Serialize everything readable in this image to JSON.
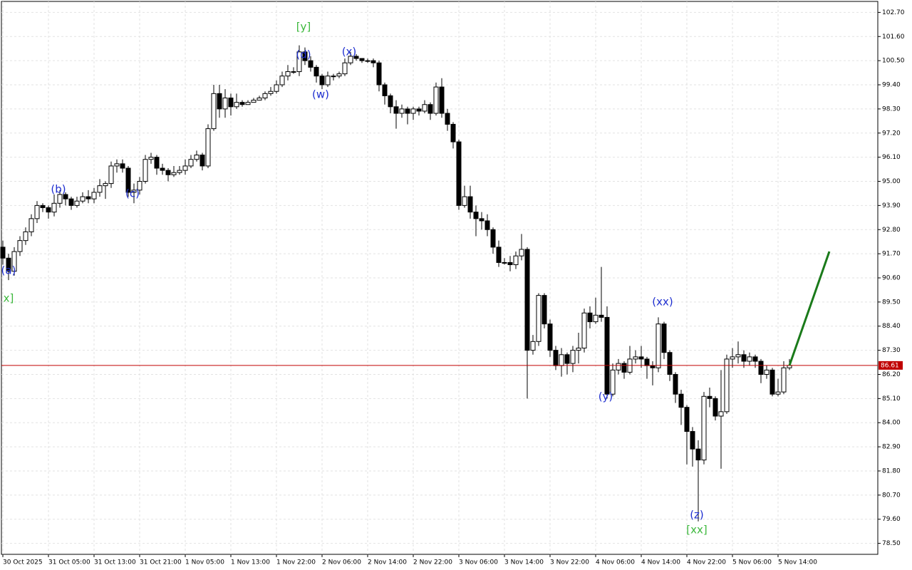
{
  "chart_data": {
    "type": "candlestick",
    "categories": [
      "30 Oct 2025",
      null,
      null,
      null,
      null,
      null,
      null,
      null,
      "31 Oct 05:00",
      null,
      null,
      null,
      null,
      null,
      null,
      null,
      "31 Oct 13:00",
      null,
      null,
      null,
      null,
      null,
      null,
      null,
      "31 Oct 21:00",
      null,
      null,
      null,
      null,
      null,
      null,
      null,
      "1 Nov 05:00",
      null,
      null,
      null,
      null,
      null,
      null,
      null,
      "1 Nov 13:00",
      null,
      null,
      null,
      null,
      null,
      null,
      null,
      "1 Nov 22:00",
      null,
      null,
      null,
      null,
      null,
      null,
      null,
      "2 Nov 06:00",
      null,
      null,
      null,
      null,
      null,
      null,
      null,
      "2 Nov 14:00",
      null,
      null,
      null,
      null,
      null,
      null,
      null,
      "2 Nov 22:00",
      null,
      null,
      null,
      null,
      null,
      null,
      null,
      "3 Nov 06:00",
      null,
      null,
      null,
      null,
      null,
      null,
      null,
      "3 Nov 14:00",
      null,
      null,
      null,
      null,
      null,
      null,
      null,
      "3 Nov 22:00",
      null,
      null,
      null,
      null,
      null,
      null,
      null,
      "4 Nov 06:00",
      null,
      null,
      null,
      null,
      null,
      null,
      null,
      "4 Nov 14:00",
      null,
      null,
      null,
      null,
      null,
      null,
      null,
      "4 Nov 22:00",
      null,
      null,
      null,
      null,
      null,
      null,
      null,
      "5 Nov 06:00",
      null,
      null,
      null,
      null,
      null,
      null,
      null,
      "5 Nov 14:00",
      null,
      null
    ],
    "open": [
      92.0,
      91.5,
      90.9,
      91.8,
      92.3,
      92.7,
      93.3,
      93.9,
      93.8,
      93.6,
      94.0,
      94.4,
      94.2,
      93.9,
      94.1,
      94.3,
      94.2,
      94.5,
      94.8,
      94.9,
      95.7,
      95.8,
      95.6,
      94.5,
      94.6,
      95.0,
      96.0,
      96.1,
      95.6,
      95.5,
      95.3,
      95.4,
      95.5,
      95.7,
      96.0,
      96.2,
      95.7,
      97.4,
      99.0,
      98.3,
      98.8,
      98.4,
      98.6,
      98.5,
      98.6,
      98.7,
      98.8,
      99.0,
      99.1,
      99.4,
      99.8,
      100.0,
      100.0,
      100.9,
      100.5,
      100.2,
      99.8,
      99.4,
      99.8,
      99.8,
      99.9,
      100.4,
      100.7,
      100.6,
      100.5,
      100.5,
      100.4,
      99.4,
      98.9,
      98.4,
      98.1,
      98.3,
      98.1,
      98.3,
      98.2,
      98.5,
      98.1,
      99.3,
      98.1,
      97.6,
      96.8,
      93.9,
      94.3,
      93.6,
      93.3,
      93.2,
      92.8,
      92.0,
      91.3,
      91.3,
      91.2,
      91.6,
      91.9,
      87.3,
      87.7,
      89.8,
      88.5,
      87.3,
      86.6,
      87.1,
      86.7,
      87.3,
      87.4,
      89.0,
      88.6,
      88.9,
      88.8,
      85.3,
      86.4,
      86.7,
      86.3,
      86.9,
      87.0,
      86.9,
      86.6,
      86.5,
      88.5,
      87.2,
      86.2,
      85.3,
      84.7,
      83.6,
      82.8,
      82.3,
      85.2,
      85.1,
      84.3,
      84.5,
      86.9,
      87.0,
      87.1,
      86.8,
      87.0,
      86.8,
      86.2,
      86.4,
      85.3,
      85.4,
      86.5
    ],
    "high": [
      92.3,
      91.7,
      92.0,
      92.5,
      92.9,
      93.5,
      94.1,
      94.0,
      93.9,
      94.4,
      94.6,
      94.5,
      94.3,
      94.3,
      94.5,
      94.6,
      94.7,
      95.1,
      95.0,
      95.9,
      96.0,
      96.0,
      95.7,
      94.9,
      95.2,
      96.2,
      96.3,
      96.2,
      95.8,
      95.6,
      95.7,
      95.7,
      96.0,
      96.2,
      96.4,
      96.3,
      97.6,
      99.4,
      99.4,
      99.2,
      99.0,
      99.0,
      98.7,
      98.7,
      98.8,
      98.9,
      99.1,
      99.3,
      99.6,
      100.0,
      100.3,
      100.2,
      101.2,
      101.1,
      100.7,
      100.3,
      99.9,
      100.0,
      99.9,
      100.0,
      100.6,
      100.9,
      100.8,
      100.6,
      100.6,
      100.6,
      100.5,
      99.5,
      99.0,
      98.7,
      98.5,
      98.4,
      98.4,
      98.4,
      98.7,
      98.6,
      99.5,
      99.7,
      98.3,
      97.7,
      96.9,
      94.8,
      94.8,
      93.9,
      93.6,
      93.5,
      92.9,
      92.3,
      91.5,
      91.6,
      91.8,
      92.6,
      92.0,
      88.0,
      89.9,
      89.9,
      88.7,
      87.5,
      87.4,
      87.2,
      87.5,
      88.1,
      89.2,
      89.3,
      89.7,
      91.1,
      89.3,
      86.7,
      86.9,
      86.8,
      87.5,
      87.3,
      87.5,
      87.0,
      86.8,
      88.8,
      88.6,
      87.3,
      86.3,
      85.5,
      84.8,
      83.8,
      83.2,
      85.4,
      85.6,
      85.2,
      86.4,
      87.1,
      87.4,
      87.7,
      87.3,
      87.2,
      87.1,
      86.9,
      86.6,
      86.5,
      86.0,
      86.8,
      86.9
    ],
    "low": [
      91.2,
      90.5,
      90.7,
      91.6,
      92.1,
      92.5,
      93.1,
      93.6,
      93.3,
      93.4,
      93.8,
      93.9,
      93.7,
      93.8,
      94.0,
      94.0,
      94.0,
      94.3,
      94.2,
      94.7,
      95.4,
      95.4,
      94.3,
      94.0,
      94.4,
      94.9,
      95.8,
      95.3,
      95.3,
      95.0,
      95.2,
      95.3,
      95.3,
      95.6,
      95.9,
      95.5,
      95.6,
      97.3,
      97.9,
      97.9,
      98.0,
      98.3,
      98.4,
      98.5,
      98.6,
      98.7,
      98.7,
      98.9,
      99.0,
      99.3,
      99.6,
      99.9,
      99.8,
      100.3,
      100.0,
      99.5,
      99.2,
      99.3,
      99.6,
      99.7,
      99.8,
      100.3,
      100.5,
      100.4,
      100.4,
      100.2,
      99.1,
      98.5,
      98.1,
      97.4,
      97.9,
      97.6,
      97.8,
      98.0,
      98.1,
      97.8,
      98.0,
      97.9,
      97.3,
      96.5,
      93.7,
      93.8,
      93.3,
      92.5,
      92.8,
      92.5,
      91.7,
      91.1,
      91.2,
      90.9,
      91.0,
      91.4,
      85.1,
      87.1,
      87.5,
      88.3,
      87.0,
      86.4,
      86.1,
      86.2,
      86.3,
      86.7,
      87.2,
      88.3,
      88.5,
      88.6,
      85.1,
      85.2,
      86.2,
      86.0,
      86.2,
      86.7,
      86.5,
      86.0,
      85.7,
      86.3,
      86.9,
      85.9,
      84.9,
      83.9,
      82.1,
      82.0,
      79.5,
      82.1,
      84.7,
      84.1,
      81.9,
      84.4,
      86.5,
      86.7,
      86.5,
      86.6,
      86.5,
      85.8,
      86.0,
      85.2,
      85.2,
      85.3,
      86.4
    ],
    "close": [
      91.5,
      90.9,
      91.8,
      92.3,
      92.7,
      93.3,
      93.9,
      93.8,
      93.6,
      94.0,
      94.4,
      94.2,
      93.9,
      94.1,
      94.3,
      94.2,
      94.5,
      94.8,
      94.9,
      95.7,
      95.8,
      95.6,
      94.5,
      94.6,
      95.0,
      96.0,
      96.1,
      95.6,
      95.5,
      95.3,
      95.4,
      95.5,
      95.7,
      96.0,
      96.2,
      95.7,
      97.4,
      99.0,
      98.3,
      98.8,
      98.4,
      98.6,
      98.5,
      98.6,
      98.7,
      98.8,
      99.0,
      99.1,
      99.4,
      99.8,
      100.0,
      100.0,
      100.9,
      100.5,
      100.2,
      99.8,
      99.4,
      99.8,
      99.8,
      99.9,
      100.4,
      100.7,
      100.6,
      100.5,
      100.5,
      100.4,
      99.4,
      98.9,
      98.4,
      98.1,
      98.3,
      98.1,
      98.3,
      98.2,
      98.5,
      98.1,
      99.3,
      98.1,
      97.6,
      96.8,
      93.9,
      94.3,
      93.6,
      93.3,
      93.2,
      92.8,
      92.0,
      91.3,
      91.3,
      91.2,
      91.6,
      91.9,
      87.3,
      87.7,
      89.8,
      88.5,
      87.3,
      86.6,
      87.1,
      86.7,
      87.3,
      87.4,
      89.0,
      88.6,
      88.9,
      88.8,
      85.3,
      86.4,
      86.7,
      86.3,
      86.9,
      87.0,
      86.9,
      86.6,
      86.5,
      88.5,
      87.2,
      86.2,
      85.3,
      84.7,
      83.6,
      82.8,
      82.3,
      85.2,
      85.1,
      84.3,
      84.5,
      86.9,
      87.0,
      87.1,
      86.8,
      87.0,
      86.8,
      86.2,
      86.4,
      85.3,
      85.4,
      86.5,
      86.61
    ],
    "up_color": "#ffffff",
    "down_color": "#000000",
    "ylim": [
      78.0,
      103.2
    ],
    "yticks": [
      {
        "value": 102.7,
        "label": "102.70"
      },
      {
        "value": 101.6,
        "label": "101.60"
      },
      {
        "value": 100.5,
        "label": "100.50"
      },
      {
        "value": 99.4,
        "label": "99.40"
      },
      {
        "value": 98.3,
        "label": "98.30"
      },
      {
        "value": 97.2,
        "label": "97.20"
      },
      {
        "value": 96.1,
        "label": "96.10"
      },
      {
        "value": 95.0,
        "label": "95.00"
      },
      {
        "value": 93.9,
        "label": "93.90"
      },
      {
        "value": 92.8,
        "label": "92.80"
      },
      {
        "value": 91.7,
        "label": "91.70"
      },
      {
        "value": 90.6,
        "label": "90.60"
      },
      {
        "value": 89.5,
        "label": "89.50"
      },
      {
        "value": 88.4,
        "label": "88.40"
      },
      {
        "value": 87.3,
        "label": "87.30"
      },
      {
        "value": 86.2,
        "label": "86.20"
      },
      {
        "value": 85.1,
        "label": "85.10"
      },
      {
        "value": 84.0,
        "label": "84.00"
      },
      {
        "value": 82.9,
        "label": "82.90"
      },
      {
        "value": 81.8,
        "label": "81.80"
      },
      {
        "value": 80.7,
        "label": "80.70"
      },
      {
        "value": 79.6,
        "label": "79.60"
      },
      {
        "value": 78.5,
        "label": "78.50"
      }
    ],
    "grid": true,
    "current_price": 86.61,
    "current_price_color": "#c00000",
    "forecast": {
      "x": [
        138,
        145
      ],
      "values": [
        86.61,
        91.8
      ],
      "color": "#1a7a1a"
    },
    "wave_labels": [
      "(a)",
      "x]",
      "(b)",
      "(c)",
      "[y]",
      "(d)",
      "(w)",
      "(x)",
      "(y)",
      "(xx)",
      "(z)",
      "[xx]"
    ]
  }
}
